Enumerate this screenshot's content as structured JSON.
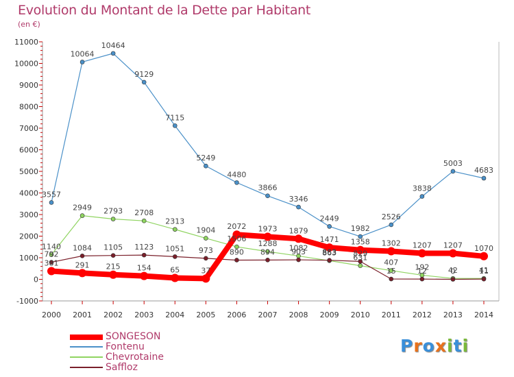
{
  "title": "Evolution du Montant de la Dette par Habitant",
  "subtitle": "(en €)",
  "logo": {
    "letters": [
      "P",
      "r",
      "o",
      "x",
      "i",
      "t",
      "i"
    ],
    "colors": [
      "#3a8fd9",
      "#e8721c",
      "#3a8fd9",
      "#e8721c",
      "#7ab93b",
      "#3a8fd9",
      "#7ab93b"
    ]
  },
  "chart_data": {
    "type": "line",
    "x": [
      "2000",
      "2001",
      "2002",
      "2003",
      "2004",
      "2005",
      "2006",
      "2007",
      "2008",
      "2009",
      "2010",
      "2011",
      "2012",
      "2013",
      "2014"
    ],
    "ylim": [
      -1000,
      11000
    ],
    "yticks": [
      "-1000",
      "0",
      "1000",
      "2000",
      "3000",
      "4000",
      "5000",
      "6000",
      "7000",
      "8000",
      "9000",
      "10000",
      "11000"
    ],
    "grid": false,
    "legend_position": "bottom-left",
    "series": [
      {
        "name": "SONGESON",
        "color": "#ff0000",
        "values": [
          381,
          291,
          215,
          154,
          65,
          37,
          2072,
          1973,
          1879,
          1471,
          1358,
          1302,
          1207,
          1207,
          1070
        ],
        "labels": [
          "381",
          "291",
          "215",
          "154",
          "65",
          "37",
          "2072",
          "1973",
          "1879",
          "1471",
          "1358",
          "1302",
          "1207",
          "1207",
          "1070"
        ]
      },
      {
        "name": "Fontenu",
        "color": "#4a90c8",
        "values": [
          3557,
          10064,
          10464,
          9129,
          7115,
          5249,
          4480,
          3866,
          3346,
          2449,
          1982,
          2526,
          3838,
          5003,
          4683
        ],
        "labels": [
          "3557",
          "10064",
          "10464",
          "9129",
          "7115",
          "5249",
          "4480",
          "3866",
          "3346",
          "2449",
          "1982",
          "2526",
          "3838",
          "5003",
          "4683"
        ]
      },
      {
        "name": "Chevrotaine",
        "color": "#8fd460",
        "values": [
          1140,
          2949,
          2793,
          2708,
          2313,
          1904,
          1506,
          1288,
          1082,
          863,
          631,
          407,
          192,
          42,
          41
        ],
        "labels": [
          "1140",
          "2949",
          "2793",
          "2708",
          "2313",
          "1904",
          "1506",
          "1288",
          "1082",
          "863",
          "631",
          "407",
          "192",
          "42",
          "41"
        ]
      },
      {
        "name": "Saffloz",
        "color": "#7a1f2a",
        "values": [
          792,
          1084,
          1105,
          1123,
          1051,
          973,
          890,
          894,
          903,
          883,
          829,
          15,
          12,
          0,
          11
        ],
        "labels": [
          "792",
          "1084",
          "1105",
          "1123",
          "1051",
          "973",
          "890",
          "894",
          "903",
          "883",
          "829",
          "15",
          "12",
          "0",
          "11"
        ]
      }
    ]
  }
}
